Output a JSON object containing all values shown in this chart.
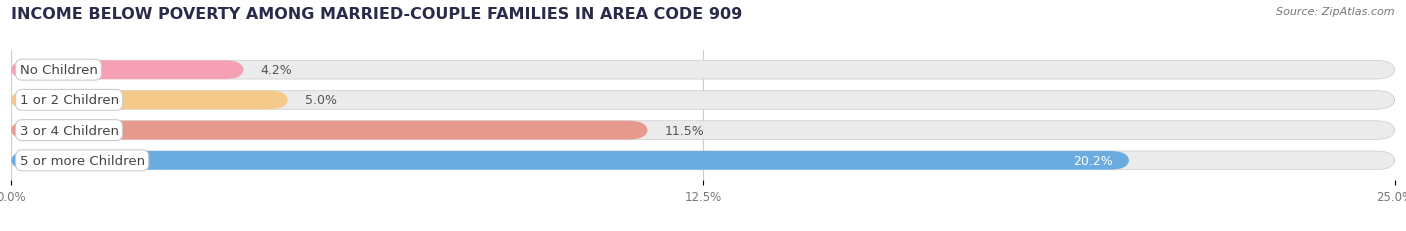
{
  "title": "INCOME BELOW POVERTY AMONG MARRIED-COUPLE FAMILIES IN AREA CODE 909",
  "source": "Source: ZipAtlas.com",
  "categories": [
    "No Children",
    "1 or 2 Children",
    "3 or 4 Children",
    "5 or more Children"
  ],
  "values": [
    4.2,
    5.0,
    11.5,
    20.2
  ],
  "value_labels": [
    "4.2%",
    "5.0%",
    "11.5%",
    "20.2%"
  ],
  "bar_colors": [
    "#f5a0b5",
    "#f5c98a",
    "#e8998d",
    "#6aabe0"
  ],
  "bar_bg_color": "#ebebeb",
  "xlim": [
    0,
    25.0
  ],
  "xticks": [
    0.0,
    12.5,
    25.0
  ],
  "xtick_labels": [
    "0.0%",
    "12.5%",
    "25.0%"
  ],
  "background_color": "#ffffff",
  "title_fontsize": 11.5,
  "label_fontsize": 9.5,
  "value_fontsize": 9,
  "bar_height": 0.62,
  "value_inside": [
    false,
    false,
    false,
    true
  ]
}
